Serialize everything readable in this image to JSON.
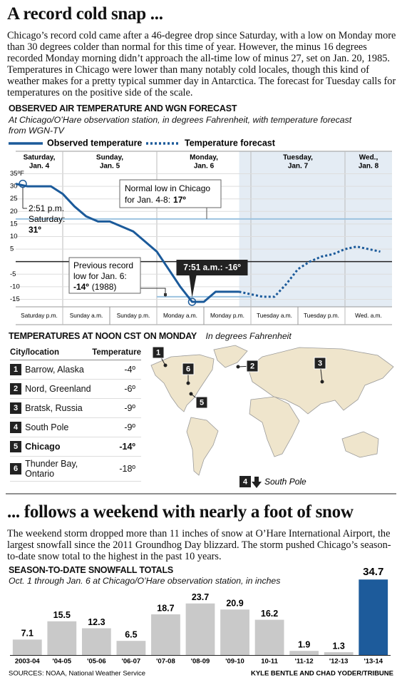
{
  "header": {
    "title": "A record cold snap ...",
    "body": "Chicago’s record cold came after a 46-degree drop since Saturday, with a low on Monday more than 30 degrees colder than normal for this time of year. However, the minus 16 degrees recorded Monday morning didn’t approach the all-time low of minus 27, set on Jan. 20, 1985. Temperatures in Chicago were lower than many notably cold locales, though this kind of weather makes for a pretty typical summer day in Antarctica. The forecast for Tuesday calls for temperatures on the positive side of the scale."
  },
  "chart_data": [
    {
      "type": "line",
      "title": "OBSERVED AIR TEMPERATURE AND WGN FORECAST",
      "subtitle": "At Chicago/O’Hare observation station, in degrees Fahrenheit, with temperature forecast from WGN-TV",
      "day_labels": [
        [
          "Saturday,",
          "Jan. 4"
        ],
        [
          "Sunday,",
          "Jan. 5"
        ],
        [
          "Monday,",
          "Jan. 6"
        ],
        [
          "Tuesday,",
          "Jan. 7"
        ],
        [
          "Wed.,",
          "Jan. 8"
        ]
      ],
      "x": [
        null,
        null,
        "Saturday p.m.",
        null,
        null,
        null,
        "Sunday a.m.",
        null,
        null,
        null,
        "Sunday p.m.",
        null,
        null,
        null,
        "Monday a.m.",
        null,
        null,
        null,
        "Monday p.m.",
        null,
        null,
        null,
        "Tuesday a.m.",
        null,
        null,
        null,
        "Tuesday p.m.",
        null,
        null,
        null,
        "Wed. a.m.",
        null,
        null
      ],
      "series": [
        {
          "name": "Observed temperature",
          "color": "#1b5a9a",
          "style": "solid",
          "values": [
            31,
            30,
            30,
            30,
            27,
            22,
            18,
            16,
            16,
            14,
            12,
            8,
            4,
            -3,
            -10,
            -16,
            -16,
            -12,
            -12,
            -12,
            null,
            null,
            null,
            null,
            null,
            null,
            null,
            null,
            null,
            null,
            null,
            null,
            null
          ]
        },
        {
          "name": "Temperature forecast",
          "color": "#1b5a9a",
          "style": "dotted",
          "values": [
            null,
            null,
            null,
            null,
            null,
            null,
            null,
            null,
            null,
            null,
            null,
            null,
            null,
            null,
            null,
            null,
            null,
            null,
            null,
            -12,
            -13,
            -14,
            -14,
            -9,
            -3,
            0,
            2,
            3,
            5,
            6,
            5,
            4,
            null
          ]
        }
      ],
      "ylim": [
        -18,
        36
      ],
      "yticks": [
        {
          "value": 35,
          "label": "35ºF"
        },
        30,
        25,
        20,
        15,
        10,
        5,
        -5,
        -10,
        -15
      ],
      "grid": true,
      "zero_line": true,
      "forecast_shading": true,
      "annotations": [
        {
          "lines": [
            "2:51 p.m.",
            "Saturday:"
          ],
          "label": "31º",
          "value": 31
        },
        {
          "lines": [
            "Normal low in Chicago",
            "for Jan. 4-8:"
          ],
          "label": "17º",
          "value": 17,
          "reference_line": true
        },
        {
          "lines": [
            "Previous record",
            "low for Jan. 6:"
          ],
          "label": "-14º",
          "note": "(1988)",
          "value": -14,
          "reference_line": true
        },
        {
          "label": "7:51 a.m.: -16º",
          "value": -16
        }
      ]
    },
    {
      "type": "bar",
      "title": "SEASON-TO-DATE SNOWFALL TOTALS",
      "subtitle": "Oct. 1 through Jan. 6 at Chicago/O’Hare observation station, in inches",
      "categories": [
        "2003-04",
        "'04-05",
        "'05-06",
        "'06-07",
        "'07-08",
        "'08-09",
        "'09-10",
        "10-11",
        "'11-12",
        "'12-13",
        "'13-14"
      ],
      "values": [
        7.1,
        15.5,
        12.3,
        6.5,
        18.7,
        23.7,
        20.9,
        16.2,
        1.9,
        1.3,
        34.7
      ],
      "colors": [
        "#c9c9c9",
        "#c9c9c9",
        "#c9c9c9",
        "#c9c9c9",
        "#c9c9c9",
        "#c9c9c9",
        "#c9c9c9",
        "#c9c9c9",
        "#c9c9c9",
        "#c9c9c9",
        "#1d5b9b"
      ]
    }
  ],
  "table": {
    "title": "TEMPERATURES AT NOON CST ON MONDAY",
    "subtitle": "In degrees Fahrenheit",
    "columns": [
      "City/location",
      "Temperature"
    ],
    "rows": [
      [
        "1",
        "Barrow, Alaska",
        "-4º"
      ],
      [
        "2",
        "Nord, Greenland",
        "-6º"
      ],
      [
        "3",
        "Bratsk, Russia",
        "-9º"
      ],
      [
        "4",
        "South Pole",
        "-9º"
      ],
      [
        "5",
        "Chicago",
        "-14º"
      ],
      [
        "6",
        "Thunder Bay, Ontario",
        "-18º"
      ]
    ],
    "bold_rows": [
      4
    ]
  },
  "map": {
    "south_pole_label": "South Pole"
  },
  "section2": {
    "title": "... follows a weekend with nearly a foot of snow",
    "body": "The weekend storm dropped more than 11 inches of snow at O’Hare International Airport, the largest snowfall since the 2011 Groundhog Day blizzard. The storm pushed Chicago’s season-to-date snow total to the highest in the past 10 years."
  },
  "footer": {
    "sources": "SOURCES: NOAA, National Weather Service",
    "credit": "KYLE BENTLE AND CHAD YODER/TRIBUNE"
  }
}
